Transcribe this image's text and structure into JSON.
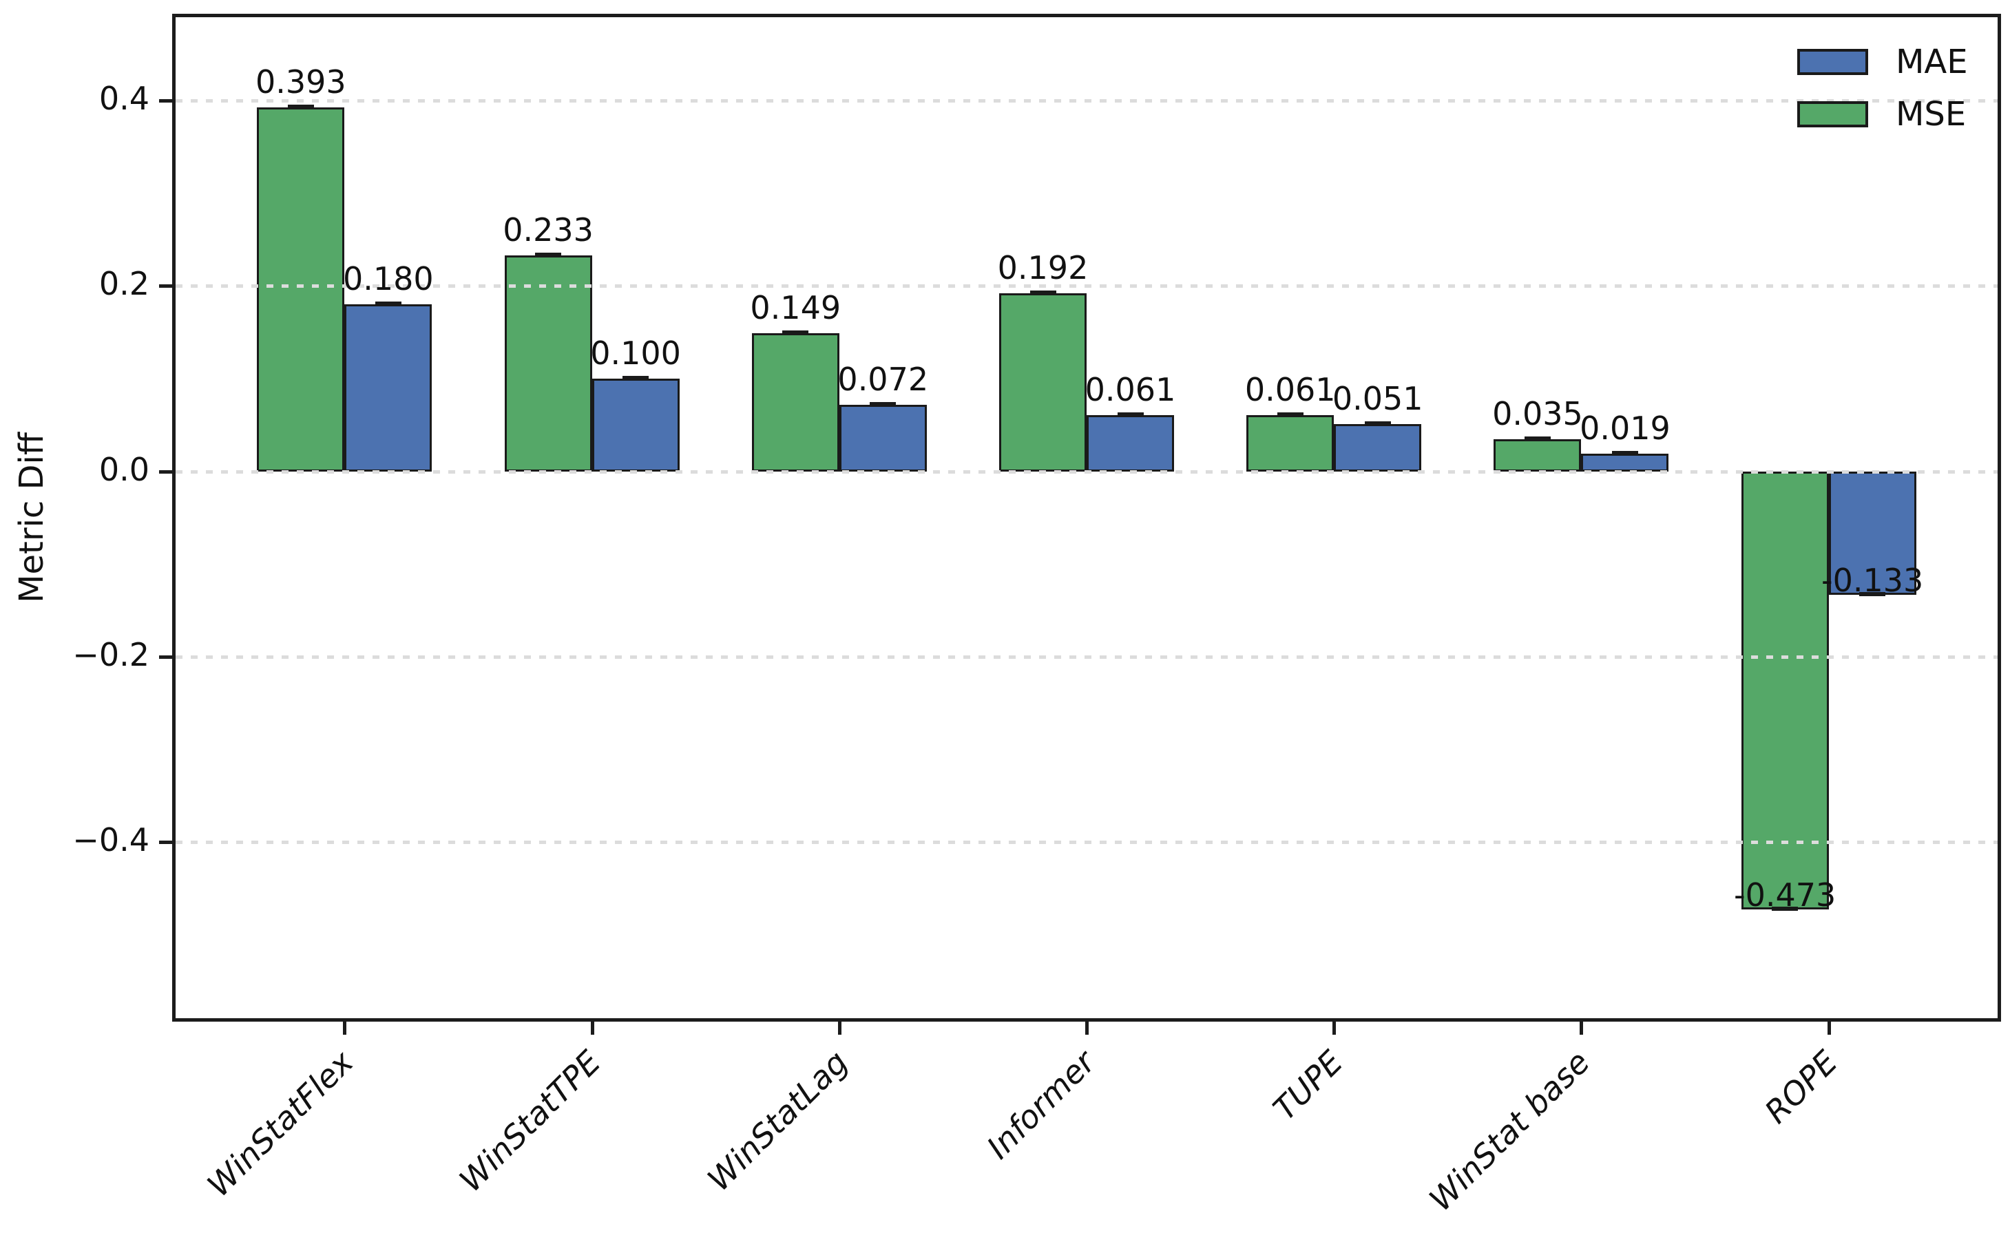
{
  "chart_data": {
    "type": "bar",
    "title": "",
    "ylabel": "Metric Diff",
    "xlabel": "",
    "categories": [
      "WinStatFlex",
      "WinStatTPE",
      "WinStatLag",
      "Informer",
      "TUPE",
      "WinStat base",
      "ROPE"
    ],
    "series": [
      {
        "name": "MAE",
        "color": "#4c72b0",
        "values": [
          0.18,
          0.1,
          0.072,
          0.061,
          0.051,
          0.019,
          -0.133
        ]
      },
      {
        "name": "MSE",
        "color": "#55a868",
        "values": [
          0.393,
          0.233,
          0.149,
          0.192,
          0.061,
          0.035,
          -0.473
        ]
      }
    ],
    "group_order": [
      "MSE",
      "MAE"
    ],
    "value_labels": {
      "MSE": [
        "0.393",
        "0.233",
        "0.149",
        "0.192",
        "0.061",
        "0.035",
        "-0.473"
      ],
      "MAE": [
        "0.180",
        "0.100",
        "0.072",
        "0.061",
        "0.051",
        "0.019",
        "-0.133"
      ]
    },
    "yticks": [
      0.4,
      0.2,
      0.0,
      -0.2,
      -0.4
    ],
    "ytick_labels": [
      "0.4",
      "0.2",
      "0.0",
      "−0.2",
      "−0.4"
    ],
    "ylim": [
      -0.59,
      0.49
    ],
    "grid": "horizontal dotted",
    "grid_color": "#dcdcdc",
    "bar_edge_color": "#1a1a1a",
    "error_bars": true,
    "legend": {
      "position": "upper right",
      "frame": false,
      "entries": [
        "MAE",
        "MSE"
      ]
    }
  }
}
